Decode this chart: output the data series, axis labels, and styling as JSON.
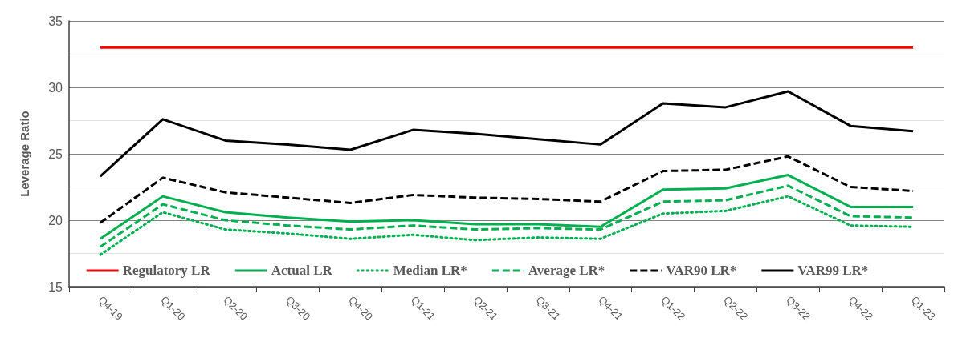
{
  "chart_data": {
    "type": "line",
    "ylabel": "Leverage Ratio",
    "categories": [
      "Q4-19",
      "Q1-20",
      "Q2-20",
      "Q3-20",
      "Q4-20",
      "Q1-21",
      "Q2-21",
      "Q3-21",
      "Q4-21",
      "Q1-22",
      "Q2-22",
      "Q3-22",
      "Q4-22",
      "Q1-23"
    ],
    "ylim": [
      15,
      35
    ],
    "yticks": [
      15,
      20,
      25,
      30,
      35
    ],
    "grid": "y",
    "legend": "bottom",
    "marker": "none",
    "series": [
      {
        "name": "Regulatory LR",
        "color": "#ff0000",
        "line_style": "solid",
        "values": [
          33,
          33,
          33,
          33,
          33,
          33,
          33,
          33,
          33,
          33,
          33,
          33,
          33,
          33
        ]
      },
      {
        "name": "Actual LR",
        "color": "#00b050",
        "line_style": "solid",
        "values": [
          18.6,
          21.8,
          20.6,
          20.2,
          19.9,
          20.0,
          19.7,
          19.7,
          19.5,
          22.3,
          22.4,
          23.4,
          21.0,
          21.0
        ]
      },
      {
        "name": "Median LR*",
        "color": "#00b050",
        "line_style": "dotted",
        "values": [
          17.4,
          20.6,
          19.3,
          19.0,
          18.6,
          18.9,
          18.5,
          18.7,
          18.6,
          20.5,
          20.7,
          21.8,
          19.6,
          19.5
        ]
      },
      {
        "name": "Average LR*",
        "color": "#00b050",
        "line_style": "dashed",
        "values": [
          18.0,
          21.2,
          20.0,
          19.6,
          19.3,
          19.6,
          19.3,
          19.4,
          19.3,
          21.4,
          21.5,
          22.6,
          20.3,
          20.2
        ]
      },
      {
        "name": "VAR90 LR*",
        "color": "#000000",
        "line_style": "dashed",
        "values": [
          19.8,
          23.2,
          22.1,
          21.7,
          21.3,
          21.9,
          21.7,
          21.6,
          21.4,
          23.7,
          23.8,
          24.8,
          22.5,
          22.2
        ]
      },
      {
        "name": "VAR99 LR*",
        "color": "#000000",
        "line_style": "solid",
        "values": [
          23.3,
          27.6,
          26.0,
          25.7,
          25.3,
          26.8,
          26.5,
          26.1,
          25.7,
          28.8,
          28.5,
          29.7,
          27.1,
          26.7
        ]
      }
    ]
  }
}
